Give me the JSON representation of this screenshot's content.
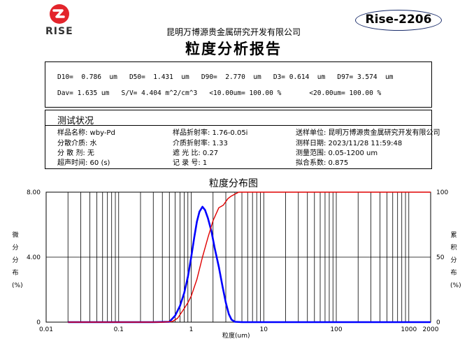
{
  "header": {
    "logo_text": "RISE",
    "model": "Rise-2206",
    "company": "昆明万博源贵金属研究开发有限公司",
    "title": "粒度分析报告"
  },
  "summary": {
    "line1": "D10=  0.786  um   D50=  1.431  um   D90=  2.770  um   D3= 0.614  um   D97= 3.574  um",
    "line2": "Dav= 1.635 um   S/V= 4.404 m^2/cm^3   <10.00um= 100.00 %       <20.00um= 100.00 %"
  },
  "conditions": {
    "section_title": "测试状况",
    "rows": [
      [
        "样品名称: wby-Pd",
        "样品折射率: 1.76-0.05i",
        "送样单位: 昆明万博源贵金属研究开发有限公司"
      ],
      [
        "分散介质: 水",
        "介质折射率: 1.33",
        "测样日期: 2023/11/28 11:59:48"
      ],
      [
        "分 散 剂: 无",
        "遮  光  比: 0.27",
        "测量范围: 0.05-1200 um"
      ],
      [
        "超声时间: 60  (s)",
        "记  录  号: 1",
        "拟合系数: 0.875"
      ]
    ]
  },
  "chart_data": {
    "type": "line",
    "title": "粒度分布图",
    "xlabel": "粒度(um)",
    "ylabel_left": "微分分布(%)",
    "ylabel_right": "累积分布(%)",
    "x_scale": "log",
    "xlim": [
      0.01,
      2000
    ],
    "ylim_left": [
      0,
      8
    ],
    "ylim_right": [
      0,
      100
    ],
    "x_ticks": [
      "0.01",
      "0.1",
      "1",
      "10",
      "100",
      "1000",
      "2000"
    ],
    "y_ticks_left": [
      "0",
      "4.00",
      "8.00"
    ],
    "y_ticks_right": [
      "0",
      "50",
      "100"
    ],
    "series": [
      {
        "axis": "left",
        "color": "#0000ff",
        "x": [
          0.02,
          0.3,
          0.5,
          0.6,
          0.7,
          0.8,
          0.9,
          1.0,
          1.1,
          1.2,
          1.3,
          1.43,
          1.55,
          1.7,
          1.9,
          2.1,
          2.4,
          2.7,
          3.0,
          3.3,
          3.6,
          4.0,
          5.0,
          2000
        ],
        "y": [
          0,
          0,
          0.02,
          0.4,
          1.0,
          1.8,
          2.8,
          4.0,
          5.2,
          6.2,
          6.8,
          7.1,
          6.9,
          6.4,
          5.6,
          4.6,
          3.4,
          2.2,
          1.2,
          0.5,
          0.15,
          0.02,
          0,
          0
        ]
      },
      {
        "axis": "right",
        "color": "#e00000",
        "x": [
          0.02,
          0.4,
          0.55,
          0.65,
          0.79,
          0.9,
          1.0,
          1.2,
          1.43,
          1.7,
          2.0,
          2.4,
          2.77,
          3.2,
          3.57,
          4.5,
          2000
        ],
        "y": [
          0,
          0,
          0.5,
          3,
          10,
          15,
          20,
          33,
          50,
          65,
          78,
          88,
          90,
          95,
          97,
          100,
          100
        ]
      }
    ],
    "grid_x": [
      0.02,
      0.03,
      0.04,
      0.05,
      0.06,
      0.07,
      0.08,
      0.09,
      0.1,
      0.2,
      0.3,
      0.4,
      0.5,
      0.6,
      0.7,
      0.8,
      0.9,
      1,
      2,
      3,
      4,
      5,
      6,
      7,
      8,
      9,
      10,
      20,
      30,
      40,
      50,
      60,
      70,
      80,
      90,
      100,
      200,
      300,
      400,
      500,
      600,
      700,
      800,
      900,
      1000
    ]
  }
}
